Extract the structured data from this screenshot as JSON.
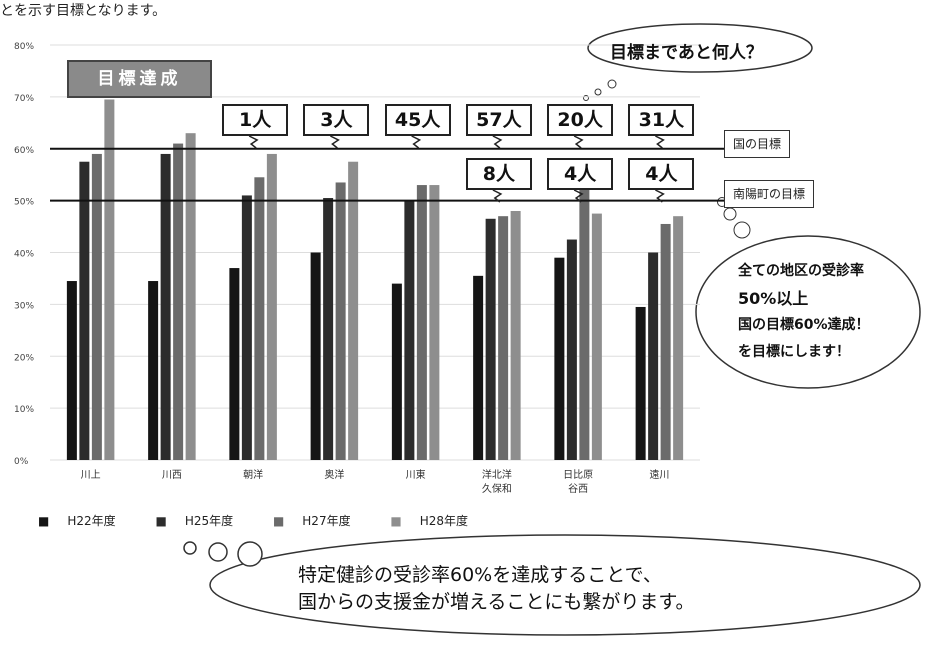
{
  "page_text": "とを示す目標となります。",
  "goal_badge": "目標達成",
  "cloud_top": "目標まであと何人？",
  "cloud_right": {
    "line1": "全ての地区の受診率",
    "line2": "50%以上",
    "line3": "国の目標60%達成！",
    "line4": "を目標にします！"
  },
  "cloud_bottom": {
    "line1": "特定健診の受診率60%を達成することで、",
    "line2": "国からの支援金が増えることにも繋がります。"
  },
  "targets": {
    "national": "国の目標",
    "town": "南陽町の目標"
  },
  "colors": {
    "h22": "#151515",
    "h25": "#2c2c2c",
    "h27": "#6b6b6b",
    "h28": "#8e8e8e"
  },
  "chart_data": {
    "type": "bar",
    "ylim": [
      0,
      80
    ],
    "yticks": [
      "0%",
      "10%",
      "20%",
      "30%",
      "40%",
      "50%",
      "60%",
      "70%",
      "80%"
    ],
    "categories": [
      "川上",
      "川西",
      "朝洋",
      "奥洋",
      "川東",
      "洋北洋\n久保和",
      "日比原\n谷西",
      "遠川"
    ],
    "series": [
      {
        "name": "H22年度",
        "values": [
          34.5,
          34.5,
          37,
          40,
          34,
          35.5,
          39,
          29.5
        ]
      },
      {
        "name": "H25年度",
        "values": [
          57.5,
          59,
          51,
          50.5,
          50,
          46.5,
          42.5,
          40
        ]
      },
      {
        "name": "H27年度",
        "values": [
          59,
          61,
          54.5,
          53.5,
          53,
          47,
          53,
          45.5
        ]
      },
      {
        "name": "H28年度",
        "values": [
          69.5,
          63,
          59,
          57.5,
          53,
          48,
          47.5,
          47
        ]
      }
    ],
    "reference_lines": [
      {
        "label": "国の目標",
        "value": 60
      },
      {
        "label": "南陽町の目標",
        "value": 50
      }
    ],
    "annotations_national": [
      "",
      "",
      "1人",
      "3人",
      "45人",
      "57人",
      "20人",
      "31人"
    ],
    "annotations_town": [
      "",
      "",
      "",
      "",
      "",
      "8人",
      "4人",
      "4人"
    ]
  }
}
